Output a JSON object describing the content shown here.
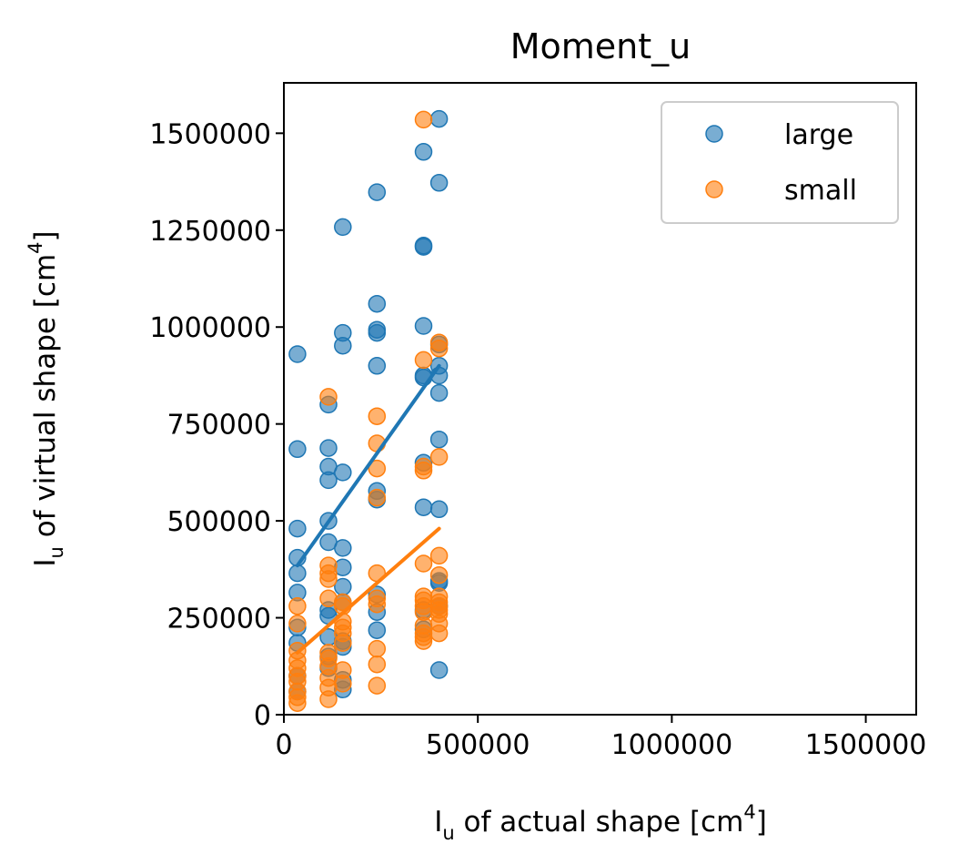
{
  "chart_data": {
    "type": "scatter",
    "title": "Moment_u",
    "xlabel": {
      "main": "I",
      "sub": "u",
      "mid": " of actual shape [cm",
      "sup": "4",
      "end": "]"
    },
    "ylabel": {
      "main": "I",
      "sub": "u",
      "mid": " of virtual shape [cm",
      "sup": "4",
      "end": "]"
    },
    "xlim": [
      0,
      1630000
    ],
    "ylim": [
      0,
      1630000
    ],
    "xticks": [
      0,
      500000,
      1000000,
      1500000
    ],
    "xtick_labels": [
      "0",
      "500000",
      "1000000",
      "1500000"
    ],
    "yticks": [
      0,
      250000,
      500000,
      750000,
      1000000,
      1250000,
      1500000
    ],
    "ytick_labels": [
      "0",
      "250000",
      "500000",
      "750000",
      "1000000",
      "1250000",
      "1500000"
    ],
    "grid": false,
    "legend_position": "top-right",
    "series": [
      {
        "name": "large",
        "color": "#1f77b4",
        "points": [
          [
            35000,
            930000
          ],
          [
            35000,
            685000
          ],
          [
            35000,
            480000
          ],
          [
            35000,
            405000
          ],
          [
            35000,
            365000
          ],
          [
            35000,
            315000
          ],
          [
            35000,
            225000
          ],
          [
            35000,
            185000
          ],
          [
            35000,
            100000
          ],
          [
            35000,
            60000
          ],
          [
            115000,
            800000
          ],
          [
            115000,
            688000
          ],
          [
            115000,
            640000
          ],
          [
            115000,
            605000
          ],
          [
            115000,
            500000
          ],
          [
            115000,
            445000
          ],
          [
            115000,
            270000
          ],
          [
            115000,
            255000
          ],
          [
            115000,
            200000
          ],
          [
            115000,
            150000
          ],
          [
            115000,
            120000
          ],
          [
            152000,
            1258000
          ],
          [
            152000,
            985000
          ],
          [
            152000,
            952000
          ],
          [
            152000,
            625000
          ],
          [
            152000,
            430000
          ],
          [
            152000,
            380000
          ],
          [
            152000,
            330000
          ],
          [
            152000,
            290000
          ],
          [
            152000,
            190000
          ],
          [
            152000,
            175000
          ],
          [
            152000,
            90000
          ],
          [
            152000,
            65000
          ],
          [
            240000,
            1348000
          ],
          [
            240000,
            1060000
          ],
          [
            240000,
            993000
          ],
          [
            240000,
            985000
          ],
          [
            240000,
            900000
          ],
          [
            240000,
            577000
          ],
          [
            240000,
            555000
          ],
          [
            240000,
            310000
          ],
          [
            240000,
            265000
          ],
          [
            240000,
            218000
          ],
          [
            360000,
            1452000
          ],
          [
            360000,
            1210000
          ],
          [
            360000,
            1207000
          ],
          [
            360000,
            1003000
          ],
          [
            360000,
            875000
          ],
          [
            360000,
            870000
          ],
          [
            360000,
            650000
          ],
          [
            360000,
            535000
          ],
          [
            360000,
            270000
          ],
          [
            360000,
            220000
          ],
          [
            400000,
            1537000
          ],
          [
            400000,
            1372000
          ],
          [
            400000,
            955000
          ],
          [
            400000,
            900000
          ],
          [
            400000,
            875000
          ],
          [
            400000,
            830000
          ],
          [
            400000,
            710000
          ],
          [
            400000,
            530000
          ],
          [
            400000,
            345000
          ],
          [
            400000,
            340000
          ],
          [
            400000,
            280000
          ],
          [
            400000,
            115000
          ]
        ],
        "trend": [
          [
            35000,
            385000
          ],
          [
            400000,
            900000
          ]
        ]
      },
      {
        "name": "small",
        "color": "#ff7f0e",
        "points": [
          [
            35000,
            280000
          ],
          [
            35000,
            235000
          ],
          [
            35000,
            165000
          ],
          [
            35000,
            140000
          ],
          [
            35000,
            120000
          ],
          [
            35000,
            100000
          ],
          [
            35000,
            85000
          ],
          [
            35000,
            60000
          ],
          [
            35000,
            45000
          ],
          [
            35000,
            30000
          ],
          [
            115000,
            820000
          ],
          [
            115000,
            385000
          ],
          [
            115000,
            365000
          ],
          [
            115000,
            350000
          ],
          [
            115000,
            300000
          ],
          [
            115000,
            160000
          ],
          [
            115000,
            145000
          ],
          [
            115000,
            125000
          ],
          [
            115000,
            95000
          ],
          [
            115000,
            70000
          ],
          [
            115000,
            40000
          ],
          [
            152000,
            290000
          ],
          [
            152000,
            280000
          ],
          [
            152000,
            240000
          ],
          [
            152000,
            225000
          ],
          [
            152000,
            210000
          ],
          [
            152000,
            185000
          ],
          [
            152000,
            115000
          ],
          [
            152000,
            80000
          ],
          [
            240000,
            770000
          ],
          [
            240000,
            700000
          ],
          [
            240000,
            635000
          ],
          [
            240000,
            560000
          ],
          [
            240000,
            365000
          ],
          [
            240000,
            300000
          ],
          [
            240000,
            285000
          ],
          [
            240000,
            170000
          ],
          [
            240000,
            130000
          ],
          [
            240000,
            75000
          ],
          [
            360000,
            1535000
          ],
          [
            360000,
            915000
          ],
          [
            360000,
            640000
          ],
          [
            360000,
            630000
          ],
          [
            360000,
            390000
          ],
          [
            360000,
            305000
          ],
          [
            360000,
            295000
          ],
          [
            360000,
            280000
          ],
          [
            360000,
            265000
          ],
          [
            360000,
            230000
          ],
          [
            360000,
            210000
          ],
          [
            360000,
            200000
          ],
          [
            360000,
            190000
          ],
          [
            400000,
            960000
          ],
          [
            400000,
            945000
          ],
          [
            400000,
            665000
          ],
          [
            400000,
            410000
          ],
          [
            400000,
            360000
          ],
          [
            400000,
            305000
          ],
          [
            400000,
            290000
          ],
          [
            400000,
            280000
          ],
          [
            400000,
            270000
          ],
          [
            400000,
            260000
          ],
          [
            400000,
            235000
          ],
          [
            400000,
            210000
          ]
        ],
        "trend": [
          [
            35000,
            160000
          ],
          [
            400000,
            480000
          ]
        ]
      }
    ]
  }
}
